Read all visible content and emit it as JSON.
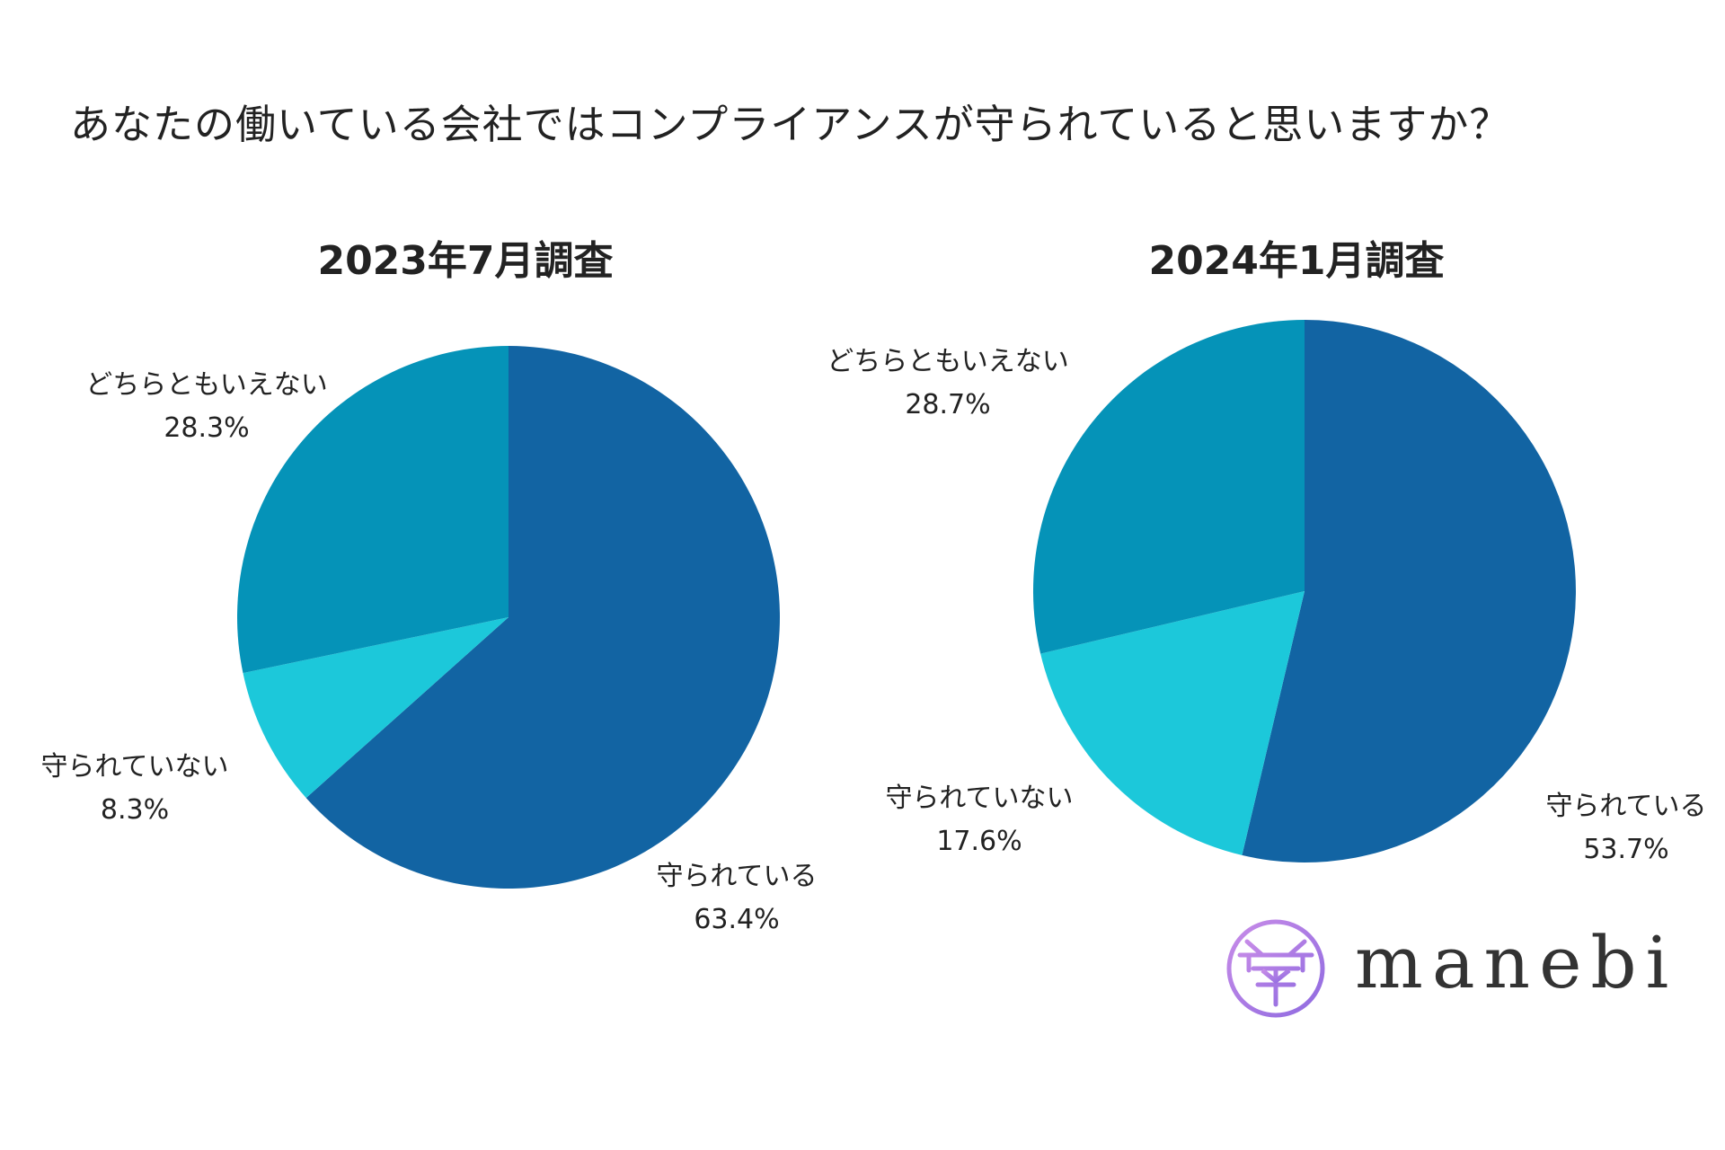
{
  "title": "あなたの働いている会社ではコンプライアンスが守られていると思いますか？",
  "colors": {
    "protected": "#1264a3",
    "neutral": "#0593b8",
    "not_protected": "#1cc8da"
  },
  "chart_data": [
    {
      "type": "pie",
      "title": "2023年7月調査",
      "slices": [
        {
          "key": "protected",
          "label": "守られている",
          "value": 63.4,
          "value_text": "63.4%"
        },
        {
          "key": "not_protected",
          "label": "守られていない",
          "value": 8.3,
          "value_text": "8.3%"
        },
        {
          "key": "neutral",
          "label": "どちらともいえない",
          "value": 28.3,
          "value_text": "28.3%"
        }
      ]
    },
    {
      "type": "pie",
      "title": "2024年1月調査",
      "slices": [
        {
          "key": "protected",
          "label": "守られている",
          "value": 53.7,
          "value_text": "53.7%"
        },
        {
          "key": "not_protected",
          "label": "守られていない",
          "value": 17.6,
          "value_text": "17.6%"
        },
        {
          "key": "neutral",
          "label": "どちらともいえない",
          "value": 28.7,
          "value_text": "28.7%"
        }
      ]
    }
  ],
  "logo": {
    "wordmark": "manebi",
    "icon": "manebi-mark-icon",
    "gradient": [
      "#c88ce8",
      "#8f6be0"
    ]
  }
}
